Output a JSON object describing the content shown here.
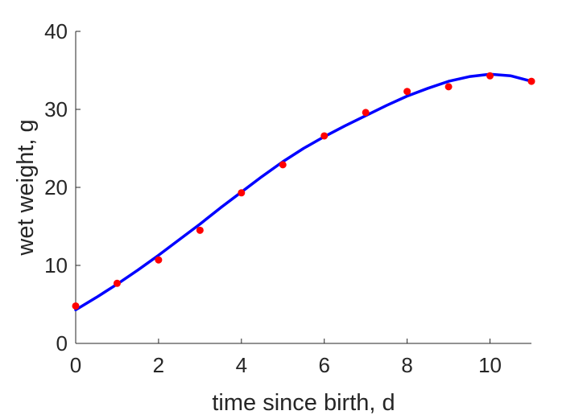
{
  "chart_data": {
    "type": "line",
    "title": "",
    "xlabel": "time since birth, d",
    "ylabel": "wet weight, g",
    "xlim": [
      0,
      11
    ],
    "ylim": [
      0,
      40
    ],
    "xticks": [
      0,
      2,
      4,
      6,
      8,
      10
    ],
    "yticks": [
      0,
      10,
      20,
      30,
      40
    ],
    "grid": false,
    "legend": "none",
    "series": [
      {
        "kind": "scatter",
        "color": "#ff0000",
        "x": [
          0,
          1,
          2,
          3,
          4,
          5,
          6,
          7,
          8,
          9,
          10,
          11
        ],
        "y": [
          4.8,
          7.7,
          10.7,
          14.5,
          19.3,
          22.9,
          26.6,
          29.6,
          32.3,
          32.9,
          34.3,
          33.6
        ]
      },
      {
        "kind": "line",
        "color": "#0000ff",
        "x": [
          0,
          0.5,
          1,
          1.5,
          2,
          2.5,
          3,
          3.5,
          4,
          4.5,
          5,
          5.5,
          6,
          6.5,
          7,
          7.5,
          8,
          8.5,
          9,
          9.5,
          10,
          10.5,
          11
        ],
        "y": [
          4.3,
          5.9,
          7.6,
          9.4,
          11.3,
          13.3,
          15.3,
          17.4,
          19.4,
          21.4,
          23.3,
          25.0,
          26.5,
          27.9,
          29.2,
          30.5,
          31.7,
          32.7,
          33.6,
          34.2,
          34.5,
          34.3,
          33.6
        ]
      }
    ]
  }
}
